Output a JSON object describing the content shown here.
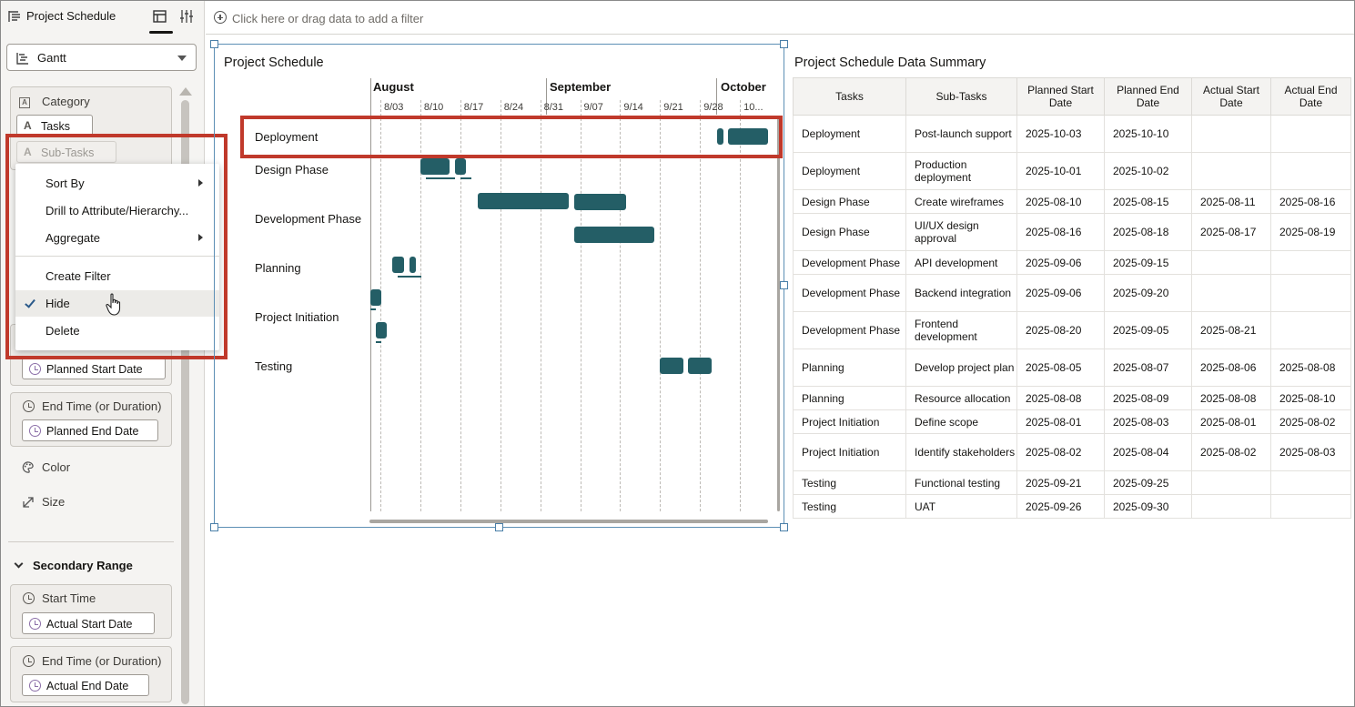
{
  "left_panel": {
    "title": "Project Schedule",
    "viz_type": "Gantt",
    "category_label": "Category",
    "category_chips": [
      "Tasks",
      "Sub-Tasks"
    ],
    "primary_range": {
      "start_chip": "Planned Start Date",
      "end_label": "End Time (or Duration)",
      "end_chip": "Planned End Date"
    },
    "color_label": "Color",
    "size_label": "Size",
    "secondary_range": {
      "title": "Secondary Range",
      "start_label": "Start Time",
      "start_chip": "Actual Start Date",
      "end_label": "End Time (or Duration)",
      "end_chip": "Actual End Date"
    }
  },
  "context_menu": {
    "items": [
      "Sort By",
      "Drill to Attribute/Hierarchy...",
      "Aggregate",
      "Create Filter",
      "Hide",
      "Delete"
    ],
    "checked_item": "Hide"
  },
  "filter_bar": {
    "placeholder": "Click here or drag data to add a filter"
  },
  "colors": {
    "bar": "#245e66",
    "highlight_box": "#c0392b",
    "selection": "#5d8fb5"
  },
  "chart_data": {
    "type": "gantt",
    "title": "Project Schedule",
    "months": [
      "August",
      "September",
      "October"
    ],
    "week_ticks": [
      "8/03",
      "8/10",
      "8/17",
      "8/24",
      "8/31",
      "9/07",
      "9/14",
      "9/21",
      "9/28",
      "10..."
    ],
    "categories": [
      "Deployment",
      "Design Phase",
      "Development Phase",
      "Planning",
      "Project Initiation",
      "Testing"
    ],
    "highlighted_category": "Deployment"
  },
  "table": {
    "title": "Project Schedule Data Summary",
    "columns": [
      "Tasks",
      "Sub-Tasks",
      "Planned Start Date",
      "Planned End Date",
      "Actual Start Date",
      "Actual End Date"
    ],
    "rows": [
      [
        "Deployment",
        "Post-launch support",
        "2025-10-03",
        "2025-10-10",
        "",
        ""
      ],
      [
        "Deployment",
        "Production deployment",
        "2025-10-01",
        "2025-10-02",
        "",
        ""
      ],
      [
        "Design Phase",
        "Create wireframes",
        "2025-08-10",
        "2025-08-15",
        "2025-08-11",
        "2025-08-16"
      ],
      [
        "Design Phase",
        "UI/UX design approval",
        "2025-08-16",
        "2025-08-18",
        "2025-08-17",
        "2025-08-19"
      ],
      [
        "Development Phase",
        "API development",
        "2025-09-06",
        "2025-09-15",
        "",
        ""
      ],
      [
        "Development Phase",
        "Backend integration",
        "2025-09-06",
        "2025-09-20",
        "",
        ""
      ],
      [
        "Development Phase",
        "Frontend development",
        "2025-08-20",
        "2025-09-05",
        "2025-08-21",
        ""
      ],
      [
        "Planning",
        "Develop project plan",
        "2025-08-05",
        "2025-08-07",
        "2025-08-06",
        "2025-08-08"
      ],
      [
        "Planning",
        "Resource allocation",
        "2025-08-08",
        "2025-08-09",
        "2025-08-08",
        "2025-08-10"
      ],
      [
        "Project Initiation",
        "Define scope",
        "2025-08-01",
        "2025-08-03",
        "2025-08-01",
        "2025-08-02"
      ],
      [
        "Project Initiation",
        "Identify stakeholders",
        "2025-08-02",
        "2025-08-04",
        "2025-08-02",
        "2025-08-03"
      ],
      [
        "Testing",
        "Functional testing",
        "2025-09-21",
        "2025-09-25",
        "",
        ""
      ],
      [
        "Testing",
        "UAT",
        "2025-09-26",
        "2025-09-30",
        "",
        ""
      ]
    ]
  }
}
